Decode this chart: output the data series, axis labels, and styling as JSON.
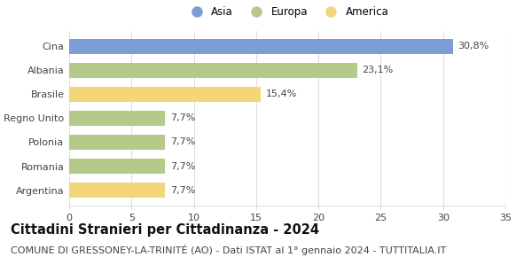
{
  "categories": [
    "Argentina",
    "Romania",
    "Polonia",
    "Regno Unito",
    "Brasile",
    "Albania",
    "Cina"
  ],
  "values": [
    7.7,
    7.7,
    7.7,
    7.7,
    15.4,
    23.1,
    30.8
  ],
  "labels": [
    "7,7%",
    "7,7%",
    "7,7%",
    "7,7%",
    "15,4%",
    "23,1%",
    "30,8%"
  ],
  "colors": [
    "#f5d57a",
    "#b5c98a",
    "#b5c98a",
    "#b5c98a",
    "#f5d57a",
    "#b5c98a",
    "#7b9fd4"
  ],
  "legend": [
    {
      "label": "Asia",
      "color": "#7b9fd4"
    },
    {
      "label": "Europa",
      "color": "#b5c98a"
    },
    {
      "label": "America",
      "color": "#f5d57a"
    }
  ],
  "xlim": [
    0,
    35
  ],
  "xticks": [
    0,
    5,
    10,
    15,
    20,
    25,
    30,
    35
  ],
  "title": "Cittadini Stranieri per Cittadinanza - 2024",
  "subtitle": "COMUNE DI GRESSONEY-LA-TRINITÉ (AO) - Dati ISTAT al 1° gennaio 2024 - TUTTITALIA.IT",
  "title_fontsize": 10.5,
  "subtitle_fontsize": 8,
  "label_fontsize": 8,
  "tick_fontsize": 8,
  "bar_height": 0.62,
  "background_color": "#ffffff"
}
